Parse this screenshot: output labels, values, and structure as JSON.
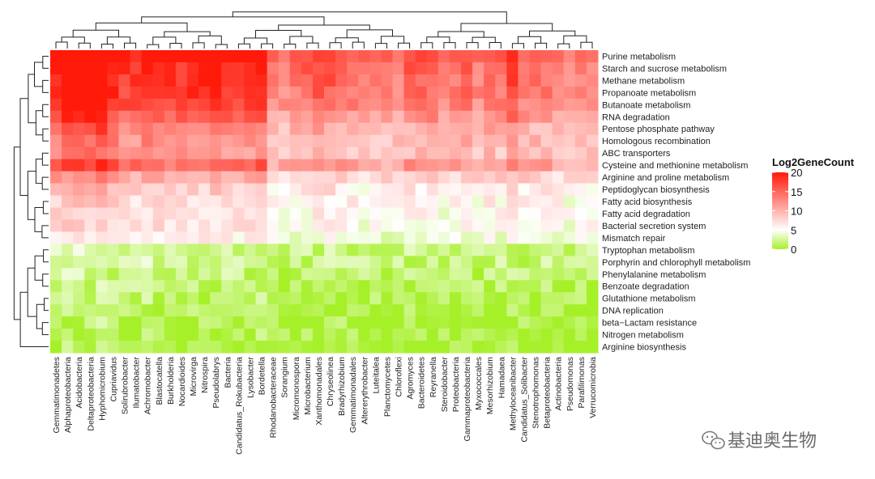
{
  "chart_data": {
    "type": "heatmap",
    "title": "",
    "value_label": "Log2GeneCount",
    "colorbar": {
      "min": 0,
      "max": 20,
      "ticks": [
        20,
        15,
        10,
        5,
        0
      ],
      "colors": [
        "#a6f02a",
        "#ffffff",
        "#ff1a0a"
      ],
      "position": "right"
    },
    "rows": [
      "Purine metabolism",
      "Starch and sucrose metabolism",
      "Methane metabolism",
      "Propanoate metabolism",
      "Butanoate metabolism",
      "RNA degradation",
      "Pentose phosphate pathway",
      "Homologous recombination",
      "ABC transporters",
      "Cysteine and methionine metabolism",
      "Arginine and proline metabolism",
      "Peptidoglycan biosynthesis",
      "Fatty acid biosynthesis",
      "Fatty acid degradation",
      "Bacterial secretion system",
      "Mismatch repair",
      "Tryptophan metabolism",
      "Porphyrin and chlorophyll metabolism",
      "Phenylalanine metabolism",
      "Benzoate degradation",
      "Glutathione metabolism",
      "DNA replication",
      "beta−Lactam resistance",
      "Nitrogen metabolism",
      "Arginine biosynthesis"
    ],
    "columns": [
      "Gemmatimonadetes",
      "Alphaproteobacteria",
      "Acidobacteria",
      "Deltaproteobacteria",
      "Hyphomicrobium",
      "Cupriavidus",
      "Solirubrobacter",
      "Ilumatobacter",
      "Achromobacter",
      "Blastocatella",
      "Burkholderia",
      "Nocardioides",
      "Microvirga",
      "Nitrospira",
      "Pseudolabrys",
      "Bacteria",
      "Candidatus_Rokubacteria",
      "Lysobacter",
      "Bordetella",
      "Rhodanobacteraceae",
      "Sorangium",
      "Micromonospora",
      "Microbacterium",
      "Xanthomonadales",
      "Chryseolinea",
      "Bradyrhizobium",
      "Gemmatimonadales",
      "Altererythrobacter",
      "Luteitalea",
      "Planctomycetes",
      "Chloroflexi",
      "Agromyces",
      "Bacteroidetes",
      "Reyranella",
      "Steroidobacter",
      "Proteobacteria",
      "Gammaproteobacteria",
      "Myxococcales",
      "Mesorhizobium",
      "Hamadaea",
      "Methyloceanibacter",
      "Candidatus_Solibacter",
      "Stenotrophomonas",
      "Betaproteobacteria",
      "Actinobacteria",
      "Pseudomonas",
      "Parafilimonas",
      "Verrucomicrobia"
    ],
    "row_base": [
      16.5,
      15.5,
      15,
      14.5,
      14,
      12.5,
      10.5,
      10,
      9.5,
      12,
      8.5,
      6.5,
      6,
      5.5,
      5.5,
      4.5,
      2,
      2,
      1.5,
      1.2,
      1,
      0.6,
      0.5,
      0.4,
      0.3
    ],
    "column_bias": [
      2.5,
      4,
      4,
      4,
      5,
      2.5,
      1.5,
      1.5,
      2.5,
      2,
      1.5,
      1.5,
      2,
      2,
      2.5,
      2,
      1.5,
      1.5,
      2.5,
      -1,
      -1,
      -0.5,
      0,
      0.5,
      0.5,
      0,
      -0.5,
      -1,
      -1,
      -1,
      -1,
      0,
      0,
      0,
      -1,
      -0.5,
      0,
      -1,
      0,
      -0.5,
      1,
      -0.5,
      -0.5,
      -0.5,
      -1,
      -1.5,
      -1,
      -1
    ]
  },
  "watermark": {
    "text": "基迪奥生物"
  }
}
